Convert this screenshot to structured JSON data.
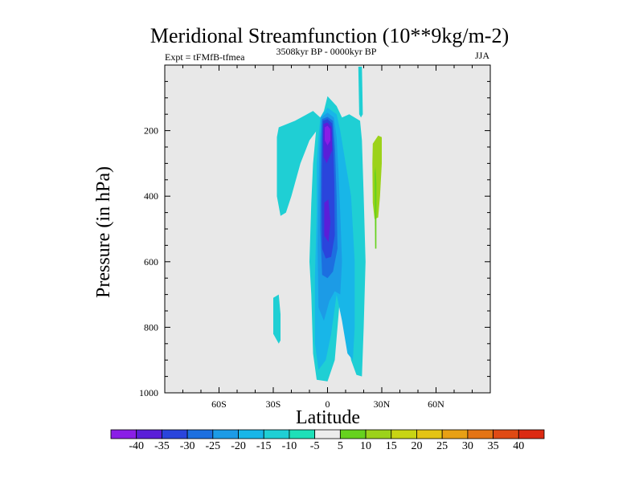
{
  "chart_data": {
    "type": "contour",
    "title": "Meridional Streamfunction (10**9kg/m-2)",
    "left_string": "Expt = tFMfB-tfmea",
    "center_string": "3508kyr BP - 0000kyr BP",
    "right_string": "JJA",
    "xlabel": "Latitude",
    "ylabel": "Pressure (in hPa)",
    "xlim": [
      -90,
      90
    ],
    "ylim": [
      1000,
      0
    ],
    "x_ticks": [
      {
        "value": -60,
        "label": "60S"
      },
      {
        "value": -30,
        "label": "30S"
      },
      {
        "value": 0,
        "label": "0"
      },
      {
        "value": 30,
        "label": "30N"
      },
      {
        "value": 60,
        "label": "60N"
      }
    ],
    "y_ticks": [
      {
        "value": 200,
        "label": "200"
      },
      {
        "value": 400,
        "label": "400"
      },
      {
        "value": 600,
        "label": "600"
      },
      {
        "value": 800,
        "label": "800"
      },
      {
        "value": 1000,
        "label": "1000"
      }
    ],
    "colorbar": {
      "levels": [
        "-40",
        "-35",
        "-30",
        "-25",
        "-20",
        "-15",
        "-10",
        "-5",
        "5",
        "10",
        "15",
        "20",
        "25",
        "30",
        "35",
        "40"
      ],
      "colors": [
        "#8a1ee6",
        "#5a1fd8",
        "#2a45dc",
        "#1c6fe0",
        "#1c9be6",
        "#18b6e8",
        "#1fcfd4",
        "#1ee0b8",
        "#ececec",
        "#66d21e",
        "#9cd21a",
        "#c8d414",
        "#e4c414",
        "#e8a014",
        "#e47414",
        "#e04a14",
        "#dc2a12"
      ]
    },
    "background_color": "#e8e8e8",
    "regions": [
      {
        "name": "neg-10-west-upper",
        "level": "-10",
        "points": [
          [
            -27,
            190
          ],
          [
            -18,
            170
          ],
          [
            -8,
            140
          ],
          [
            -2,
            170
          ],
          [
            -10,
            230
          ],
          [
            -15,
            300
          ],
          [
            -20,
            400
          ],
          [
            -23,
            450
          ],
          [
            -26,
            460
          ],
          [
            -28,
            400
          ],
          [
            -28,
            300
          ],
          [
            -28,
            220
          ]
        ]
      },
      {
        "name": "neg-10-main",
        "level": "-10",
        "points": [
          [
            -6,
            180
          ],
          [
            -2,
            140
          ],
          [
            0,
            95
          ],
          [
            5,
            125
          ],
          [
            8,
            160
          ],
          [
            12,
            150
          ],
          [
            18,
            170
          ],
          [
            19,
            230
          ],
          [
            20,
            400
          ],
          [
            21,
            600
          ],
          [
            20,
            800
          ],
          [
            19,
            950
          ],
          [
            16,
            945
          ],
          [
            13,
            900
          ],
          [
            10,
            800
          ],
          [
            7,
            700
          ],
          [
            4,
            900
          ],
          [
            0,
            965
          ],
          [
            -6,
            960
          ],
          [
            -8,
            880
          ],
          [
            -9,
            700
          ],
          [
            -10,
            600
          ],
          [
            -9,
            420
          ],
          [
            -8,
            300
          ]
        ]
      },
      {
        "name": "neg-10-narrow-strip",
        "level": "-10",
        "points": [
          [
            17,
            5
          ],
          [
            19,
            5
          ],
          [
            19.5,
            150
          ],
          [
            18.5,
            160
          ],
          [
            17.5,
            150
          ]
        ]
      },
      {
        "name": "neg-10-south-blob",
        "level": "-10",
        "points": [
          [
            -30,
            710
          ],
          [
            -27,
            700
          ],
          [
            -26,
            760
          ],
          [
            -26,
            840
          ],
          [
            -27,
            850
          ],
          [
            -30,
            820
          ]
        ]
      },
      {
        "name": "neg-15-core",
        "level": "-15",
        "points": [
          [
            -4,
            160
          ],
          [
            0,
            130
          ],
          [
            5,
            150
          ],
          [
            7,
            200
          ],
          [
            10,
            300
          ],
          [
            13,
            400
          ],
          [
            15,
            600
          ],
          [
            15,
            800
          ],
          [
            14,
            900
          ],
          [
            11,
            880
          ],
          [
            8,
            780
          ],
          [
            5,
            700
          ],
          [
            2,
            820
          ],
          [
            -1,
            900
          ],
          [
            -5,
            930
          ],
          [
            -7,
            850
          ],
          [
            -7,
            650
          ],
          [
            -6,
            450
          ],
          [
            -6,
            300
          ],
          [
            -5,
            220
          ]
        ]
      },
      {
        "name": "neg-20-core",
        "level": "-20",
        "points": [
          [
            -3.5,
            160
          ],
          [
            0,
            145
          ],
          [
            3.5,
            160
          ],
          [
            5,
            220
          ],
          [
            6,
            320
          ],
          [
            7,
            450
          ],
          [
            8,
            600
          ],
          [
            7,
            700
          ],
          [
            4,
            690
          ],
          [
            1,
            720
          ],
          [
            -2,
            780
          ],
          [
            -5,
            740
          ],
          [
            -5.5,
            550
          ],
          [
            -5,
            380
          ],
          [
            -4.5,
            250
          ]
        ]
      },
      {
        "name": "neg-25-core",
        "level": "-25",
        "points": [
          [
            -3,
            165
          ],
          [
            0,
            158
          ],
          [
            3,
            170
          ],
          [
            4.2,
            260
          ],
          [
            5,
            400
          ],
          [
            5.5,
            560
          ],
          [
            3,
            630
          ],
          [
            0,
            650
          ],
          [
            -3,
            640
          ],
          [
            -4,
            500
          ],
          [
            -3.8,
            330
          ],
          [
            -3.5,
            220
          ]
        ]
      },
      {
        "name": "neg-30-core",
        "level": "-30",
        "points": [
          [
            -2.6,
            170
          ],
          [
            0,
            165
          ],
          [
            2.6,
            178
          ],
          [
            3.2,
            250
          ],
          [
            3.8,
            360
          ],
          [
            4,
            520
          ],
          [
            2,
            585
          ],
          [
            -1,
            590
          ],
          [
            -3,
            560
          ],
          [
            -3.2,
            420
          ],
          [
            -3,
            280
          ]
        ]
      },
      {
        "name": "neg-35-core",
        "level": "-35",
        "points": [
          [
            -2.3,
            180
          ],
          [
            0,
            175
          ],
          [
            2.2,
            190
          ],
          [
            2.6,
            260
          ],
          [
            -0.5,
            300
          ],
          [
            -2.2,
            280
          ],
          [
            -2.4,
            220
          ]
        ]
      },
      {
        "name": "neg-35-lower",
        "level": "-35",
        "points": [
          [
            -1.8,
            420
          ],
          [
            0.5,
            410
          ],
          [
            1.6,
            480
          ],
          [
            0.5,
            540
          ],
          [
            -1.8,
            520
          ]
        ]
      },
      {
        "name": "neg-40-core",
        "level": "-40",
        "points": [
          [
            -1.5,
            190
          ],
          [
            0,
            185
          ],
          [
            1.5,
            195
          ],
          [
            1.6,
            230
          ],
          [
            0,
            245
          ],
          [
            -1.5,
            230
          ]
        ]
      },
      {
        "name": "pos-10-green",
        "level": "10",
        "points": [
          [
            25,
            240
          ],
          [
            28,
            215
          ],
          [
            30,
            220
          ],
          [
            30,
            300
          ],
          [
            29,
            400
          ],
          [
            28,
            465
          ],
          [
            26,
            470
          ],
          [
            25,
            420
          ],
          [
            24.8,
            300
          ]
        ]
      },
      {
        "name": "pos-5-east-sliver",
        "level": "5",
        "points": [
          [
            26,
            330
          ],
          [
            26.5,
            310
          ],
          [
            27,
            360
          ],
          [
            27,
            560
          ],
          [
            26.3,
            560
          ]
        ]
      }
    ]
  }
}
